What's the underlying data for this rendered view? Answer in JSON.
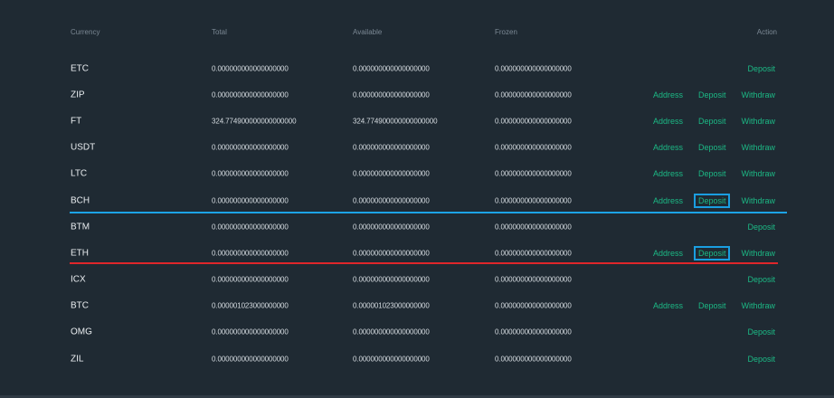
{
  "header": {
    "currency": "Currency",
    "total": "Total",
    "available": "Available",
    "frozen": "Frozen",
    "action": "Action"
  },
  "labels": {
    "address": "Address",
    "deposit": "Deposit",
    "withdraw": "Withdraw"
  },
  "rows": [
    {
      "currency": "ETC",
      "total": "0.000000000000000000",
      "available": "0.000000000000000000",
      "frozen": "0.000000000000000000",
      "actions": [
        "deposit"
      ]
    },
    {
      "currency": "ZIP",
      "total": "0.000000000000000000",
      "available": "0.000000000000000000",
      "frozen": "0.000000000000000000",
      "actions": [
        "address",
        "deposit",
        "withdraw"
      ]
    },
    {
      "currency": "FT",
      "total": "324.774900000000000000",
      "available": "324.774900000000000000",
      "frozen": "0.000000000000000000",
      "actions": [
        "address",
        "deposit",
        "withdraw"
      ]
    },
    {
      "currency": "USDT",
      "total": "0.000000000000000000",
      "available": "0.000000000000000000",
      "frozen": "0.000000000000000000",
      "actions": [
        "address",
        "deposit",
        "withdraw"
      ]
    },
    {
      "currency": "LTC",
      "total": "0.000000000000000000",
      "available": "0.000000000000000000",
      "frozen": "0.000000000000000000",
      "actions": [
        "address",
        "deposit",
        "withdraw"
      ]
    },
    {
      "currency": "BCH",
      "total": "0.000000000000000000",
      "available": "0.000000000000000000",
      "frozen": "0.000000000000000000",
      "actions": [
        "address",
        "deposit",
        "withdraw"
      ],
      "highlight": "deposit"
    },
    {
      "currency": "BTM",
      "total": "0.000000000000000000",
      "available": "0.000000000000000000",
      "frozen": "0.000000000000000000",
      "actions": [
        "deposit"
      ]
    },
    {
      "currency": "ETH",
      "total": "0.000000000000000000",
      "available": "0.000000000000000000",
      "frozen": "0.000000000000000000",
      "actions": [
        "address",
        "deposit",
        "withdraw"
      ],
      "highlight": "deposit"
    },
    {
      "currency": "ICX",
      "total": "0.000000000000000000",
      "available": "0.000000000000000000",
      "frozen": "0.000000000000000000",
      "actions": [
        "deposit"
      ]
    },
    {
      "currency": "BTC",
      "total": "0.000001023000000000",
      "available": "0.000001023000000000",
      "frozen": "0.000000000000000000",
      "actions": [
        "address",
        "deposit",
        "withdraw"
      ]
    },
    {
      "currency": "OMG",
      "total": "0.000000000000000000",
      "available": "0.000000000000000000",
      "frozen": "0.000000000000000000",
      "actions": [
        "deposit"
      ]
    },
    {
      "currency": "ZIL",
      "total": "0.000000000000000000",
      "available": "0.000000000000000000",
      "frozen": "0.000000000000000000",
      "actions": [
        "deposit"
      ]
    }
  ],
  "colors": {
    "background": "#1f2a33",
    "link": "#1cb985",
    "highlight_box": "#1a9ee0",
    "blue_line": "#1ca3e6",
    "red_line": "#e0262b"
  }
}
